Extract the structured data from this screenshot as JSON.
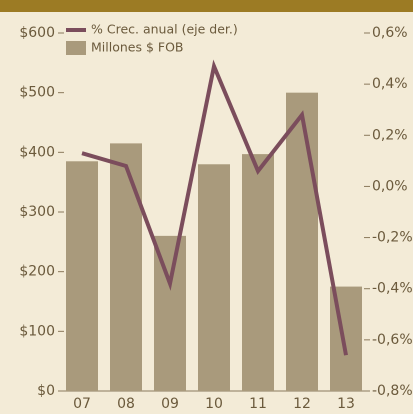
{
  "chart_data": {
    "type": "bar",
    "categories": [
      "07",
      "08",
      "09",
      "10",
      "11",
      "12",
      "13"
    ],
    "series": [
      {
        "name": "% Crec. anual (eje der.)",
        "type": "line",
        "axis": "y2",
        "color": "#7b4d5c",
        "values": [
          0.13,
          0.08,
          -0.38,
          0.47,
          0.06,
          0.28,
          -0.66
        ]
      },
      {
        "name": "Millones $ FOB",
        "type": "bar",
        "color": "#a99a7c",
        "values": [
          385,
          415,
          260,
          380,
          397,
          500,
          175
        ]
      }
    ],
    "ylim": [
      0,
      600
    ],
    "yticks": [
      {
        "value": 0,
        "label": "$0"
      },
      {
        "value": 100,
        "label": "$100"
      },
      {
        "value": 200,
        "label": "$200"
      },
      {
        "value": 300,
        "label": "$300"
      },
      {
        "value": 400,
        "label": "$400"
      },
      {
        "value": 500,
        "label": "$500"
      },
      {
        "value": 600,
        "label": "$600"
      }
    ],
    "y2lim": [
      -0.8,
      0.6
    ],
    "y2ticks": [
      {
        "value": -0.8,
        "label": "-0,8%"
      },
      {
        "value": -0.6,
        "label": "-0,6%"
      },
      {
        "value": -0.4,
        "label": "-0,4%"
      },
      {
        "value": -0.2,
        "label": "-0,2%"
      },
      {
        "value": 0,
        "label": "0,0%"
      },
      {
        "value": 0.2,
        "label": "0,2%"
      },
      {
        "value": 0.4,
        "label": "0,4%"
      },
      {
        "value": 0.6,
        "label": "0,6%"
      }
    ],
    "legend": "top-left"
  }
}
